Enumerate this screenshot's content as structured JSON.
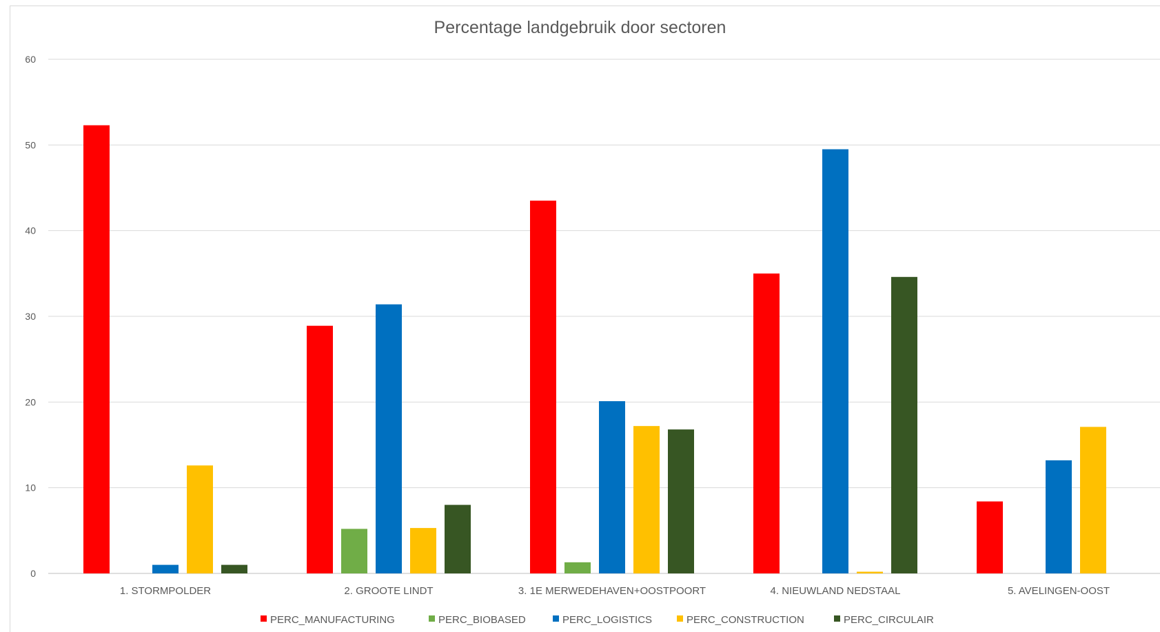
{
  "chart_data": {
    "type": "bar",
    "title": "Percentage landgebruik door sectoren",
    "xlabel": "",
    "ylabel": "",
    "ylim": [
      0,
      60
    ],
    "yticks": [
      0,
      10,
      20,
      30,
      40,
      50,
      60
    ],
    "grid": true,
    "legend_position": "bottom",
    "categories": [
      "1. STORMPOLDER",
      "2. GROOTE LINDT",
      "3. 1E MERWEDEHAVEN+OOSTPOORT",
      "4. NIEUWLAND NEDSTAAL",
      "5. AVELINGEN-OOST"
    ],
    "series": [
      {
        "name": "PERC_MANUFACTURING",
        "color": "#ff0000",
        "values": [
          52.3,
          28.9,
          43.5,
          35.0,
          8.4
        ]
      },
      {
        "name": "PERC_BIOBASED",
        "color": "#70ad47",
        "values": [
          0,
          5.2,
          1.3,
          0,
          0
        ]
      },
      {
        "name": "PERC_LOGISTICS",
        "color": "#0070c0",
        "values": [
          1.0,
          31.4,
          20.1,
          49.5,
          13.2
        ]
      },
      {
        "name": "PERC_CONSTRUCTION",
        "color": "#ffc000",
        "values": [
          12.6,
          5.3,
          17.2,
          0.2,
          17.1
        ]
      },
      {
        "name": "PERC_CIRCULAIR",
        "color": "#375623",
        "values": [
          1.0,
          8.0,
          16.8,
          34.6,
          0
        ]
      }
    ]
  }
}
